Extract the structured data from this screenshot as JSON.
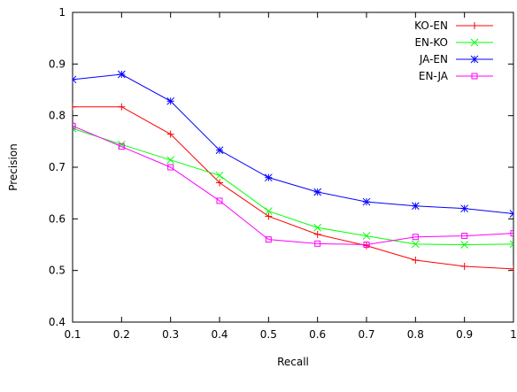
{
  "chart_data": {
    "type": "line",
    "title": "",
    "xlabel": "Recall",
    "ylabel": "Precision",
    "xlim": [
      0.1,
      1
    ],
    "ylim": [
      0.4,
      1
    ],
    "x_ticks": [
      "0.1",
      "0.2",
      "0.3",
      "0.4",
      "0.5",
      "0.6",
      "0.7",
      "0.8",
      "0.9",
      "1"
    ],
    "y_ticks": [
      "0.4",
      "0.5",
      "0.6",
      "0.7",
      "0.8",
      "0.9",
      "1"
    ],
    "grid": false,
    "legend_position": "top-right",
    "x": [
      0.1,
      0.2,
      0.3,
      0.4,
      0.5,
      0.6,
      0.7,
      0.8,
      0.9,
      1.0
    ],
    "series": [
      {
        "name": "KO-EN",
        "color": "#ff0000",
        "marker": "plus",
        "values": [
          0.817,
          0.817,
          0.764,
          0.67,
          0.605,
          0.57,
          0.548,
          0.52,
          0.508,
          0.503
        ]
      },
      {
        "name": "EN-KO",
        "color": "#00ff00",
        "marker": "cross",
        "values": [
          0.775,
          0.744,
          0.714,
          0.684,
          0.615,
          0.583,
          0.567,
          0.551,
          0.55,
          0.551
        ]
      },
      {
        "name": "JA-EN",
        "color": "#0000ff",
        "marker": "star",
        "values": [
          0.87,
          0.88,
          0.828,
          0.733,
          0.68,
          0.652,
          0.633,
          0.625,
          0.62,
          0.61
        ]
      },
      {
        "name": "EN-JA",
        "color": "#ff00ff",
        "marker": "square",
        "values": [
          0.78,
          0.74,
          0.7,
          0.635,
          0.56,
          0.552,
          0.55,
          0.565,
          0.567,
          0.572
        ]
      }
    ]
  }
}
